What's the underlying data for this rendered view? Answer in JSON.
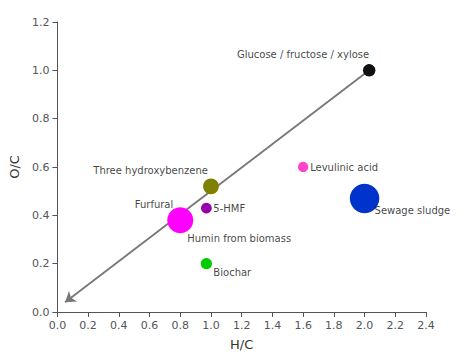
{
  "chart_data": {
    "type": "scatter",
    "xlabel": "H/C",
    "ylabel": "O/C",
    "xlim": [
      0.0,
      2.4
    ],
    "ylim": [
      0.0,
      1.2
    ],
    "xticks": [
      {
        "value": 0.0,
        "label": "0.0"
      },
      0.2,
      0.4,
      0.6,
      0.8,
      {
        "value": 1.0,
        "label": "1.0"
      },
      1.2,
      1.4,
      1.6,
      1.8,
      {
        "value": 2.0,
        "label": "2.0"
      },
      2.2,
      2.4
    ],
    "yticks": [
      {
        "value": 0.0,
        "label": "0.0"
      },
      0.2,
      0.4,
      0.6,
      0.8,
      {
        "value": 1.0,
        "label": "1.0"
      },
      1.2
    ],
    "grid": false,
    "points": [
      {
        "label": "Glucose / fructose / xylose",
        "x": 2.03,
        "y": 1.0,
        "color": "#111111",
        "size": 80
      },
      {
        "label": "Three hydroxybenzene",
        "x": 1.0,
        "y": 0.52,
        "color": "#808000",
        "size": 130
      },
      {
        "label": "5-HMF",
        "x": 0.97,
        "y": 0.43,
        "color": "#9900aa",
        "size": 60
      },
      {
        "label": "Furfural",
        "x": 0.8,
        "y": 0.38,
        "color": "#ff00ff",
        "size": 350
      },
      {
        "label": "Humin from biomass",
        "x": 0.8,
        "y": 0.38,
        "color": null,
        "size": 0
      },
      {
        "label": "Levulinic acid",
        "x": 1.6,
        "y": 0.6,
        "color": "#ff44cc",
        "size": 55
      },
      {
        "label": "Biochar",
        "x": 0.97,
        "y": 0.2,
        "color": "#00cc00",
        "size": 65
      },
      {
        "label": "Sewage sludge",
        "x": 2.0,
        "y": 0.47,
        "color": "#0033cc",
        "size": 450
      }
    ],
    "annotations": [
      {
        "type": "arrow",
        "x": [
          2.03,
          0.05
        ],
        "y": [
          1.0,
          0.04
        ],
        "color": "#777777"
      }
    ]
  }
}
